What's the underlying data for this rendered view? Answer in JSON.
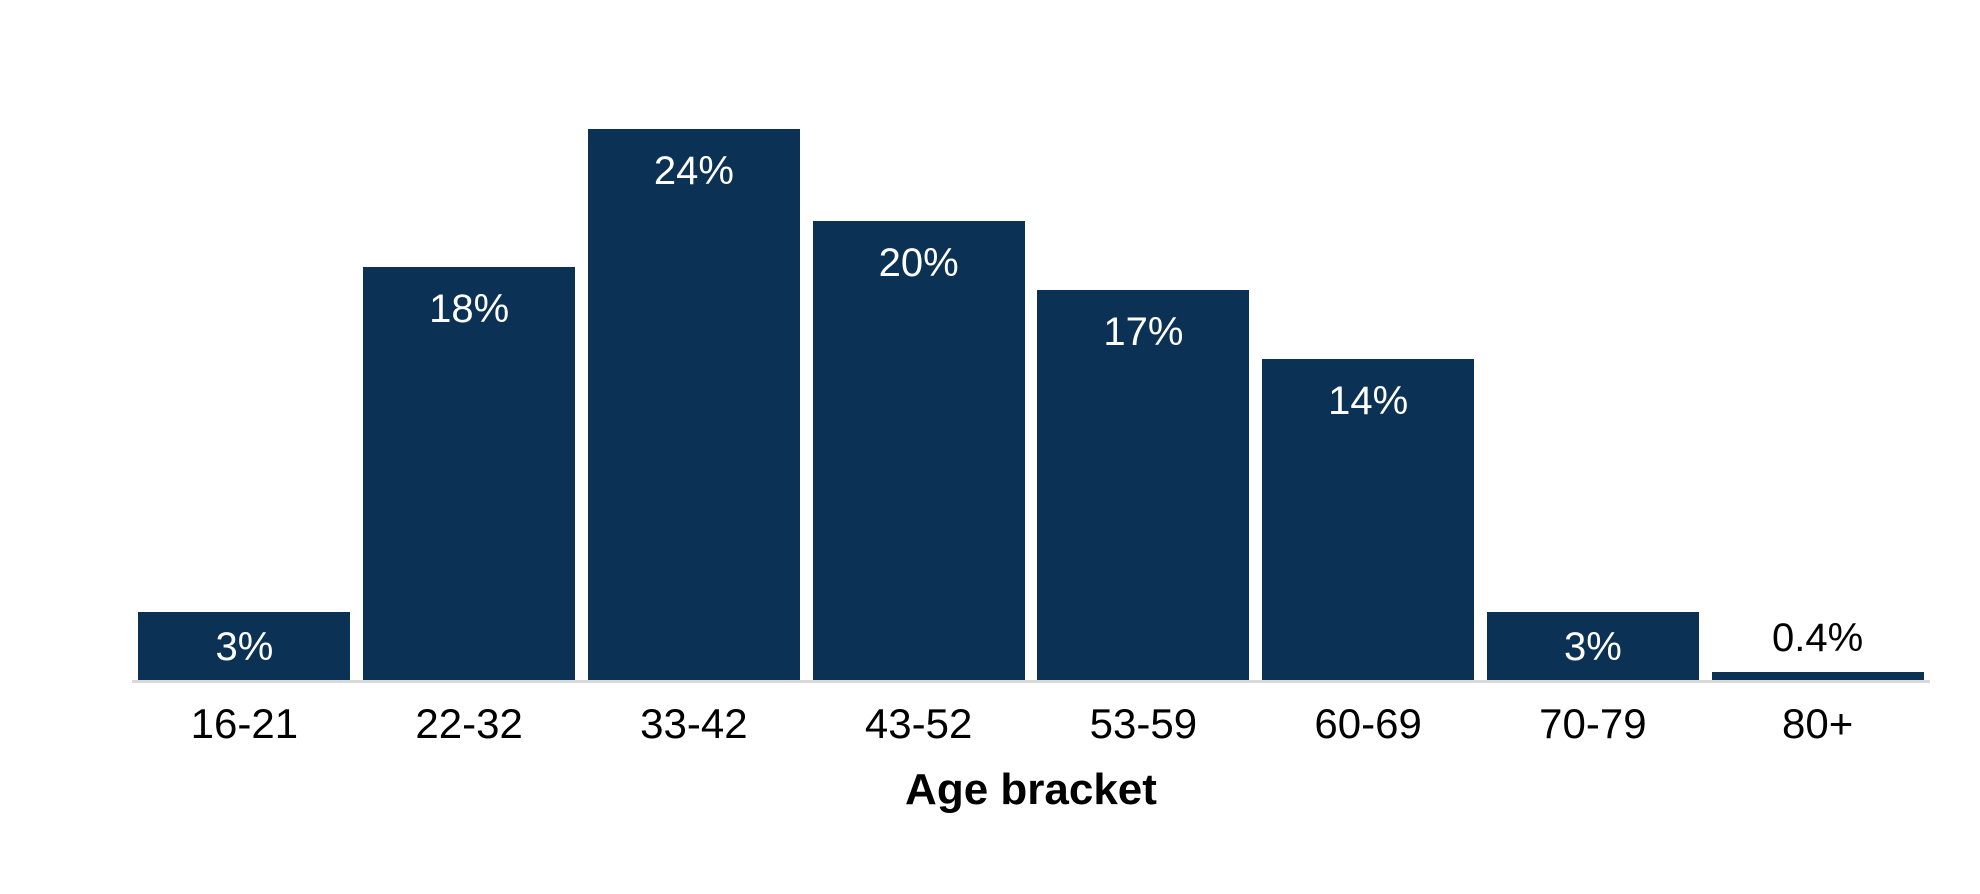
{
  "chart_data": {
    "type": "bar",
    "title": "",
    "xlabel": "Age bracket",
    "ylabel": "",
    "categories": [
      "16-21",
      "22-32",
      "33-42",
      "43-52",
      "53-59",
      "60-69",
      "70-79",
      "80+"
    ],
    "values": [
      3,
      18,
      24,
      20,
      17,
      14,
      3,
      0.4
    ],
    "value_labels": [
      "3%",
      "18%",
      "24%",
      "20%",
      "17%",
      "14%",
      "3%",
      "0.4%"
    ],
    "value_label_position": "inside-end, outside for smallest bar",
    "ylim": [
      0,
      25
    ],
    "grid": false,
    "legend": "none",
    "colors": {
      "bar": "#0b3155",
      "label_inside": "#ffffff",
      "label_outside": "#000000",
      "axis_line": "#d9d9d9",
      "background": "#ffffff"
    }
  }
}
